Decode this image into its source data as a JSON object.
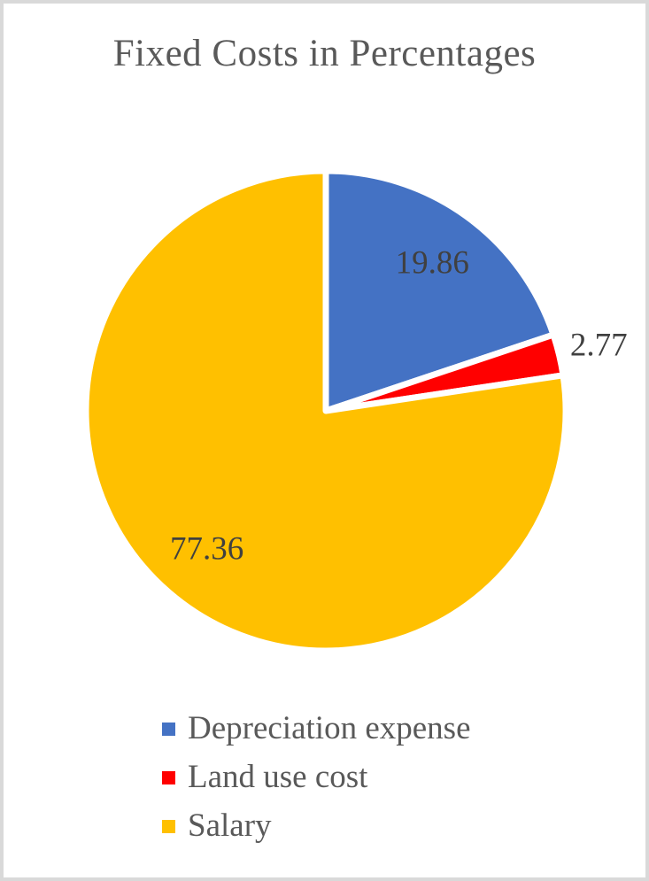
{
  "frame": {
    "border_color": "#D9D9D9",
    "background": "#FFFFFF"
  },
  "chart_data": {
    "type": "pie",
    "title": "Fixed Costs in Percentages",
    "categories": [
      "Depreciation expense",
      "Land use cost",
      "Salary"
    ],
    "values": [
      19.86,
      2.77,
      77.36
    ],
    "slice_colors": [
      "#4472C4",
      "#FF0000",
      "#FFC000"
    ],
    "data_labels": [
      "19.86",
      "2.77",
      "77.36"
    ],
    "start_angle_deg": 0,
    "direction": "clockwise",
    "slice_separator_color": "#FFFFFF",
    "title_color": "#595959",
    "data_label_color": "#404040",
    "legend_text_color": "#595959",
    "legend_position": "bottom"
  }
}
